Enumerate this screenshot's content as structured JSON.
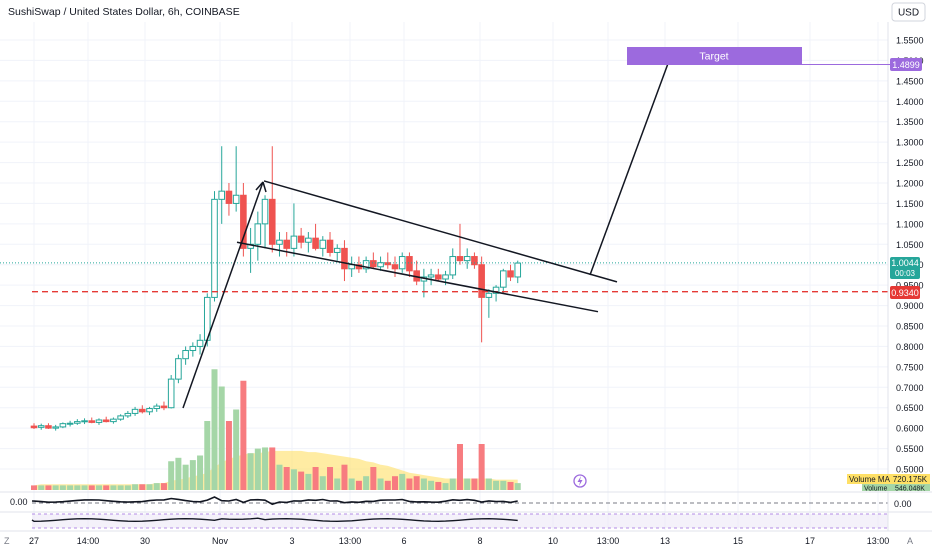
{
  "header": {
    "title": "SushiSwap / United States Dollar, 6h, COINBASE",
    "currency_button": "USD"
  },
  "colors": {
    "up": "#26a69a",
    "up_fill": "#ffffff",
    "down": "#ef5350",
    "vol_up": "#a5d6a7",
    "vol_down": "#f77c80",
    "vol_ma": "#ffe066",
    "accent": "#9c6ade",
    "dashed": "#e53935",
    "last_price": "#26a69a"
  },
  "annotations": {
    "target_label": "Target",
    "target_price": "1.4899",
    "last_price": "1.0044",
    "countdown": "00:03",
    "support_price": "0.9340",
    "volume_ma_label": "Volume MA",
    "volume_ma_value": "720.175K",
    "volume_label": "Volume",
    "volume_value": "546.048K",
    "osc_value_left": "0.00",
    "osc_value_right": "0.00"
  },
  "chart_data": {
    "type": "candlestick",
    "y_axis_ticks": [
      "1.5500",
      "1.5000",
      "1.4500",
      "1.4000",
      "1.3500",
      "1.3000",
      "1.2500",
      "1.2000",
      "1.1500",
      "1.1000",
      "1.0500",
      "1.0000",
      "0.9500",
      "0.9000",
      "0.8500",
      "0.8000",
      "0.7500",
      "0.7000",
      "0.6500",
      "0.6000",
      "0.5500",
      "0.5000"
    ],
    "x_axis_ticks": [
      "27",
      "14:00",
      "30",
      "Nov",
      "3",
      "13:00",
      "6",
      "8",
      "10",
      "13:00",
      "13",
      "15",
      "17",
      "13:00"
    ],
    "ylim": [
      0.49,
      1.57
    ],
    "candles": [
      {
        "o": 0.605,
        "h": 0.612,
        "l": 0.598,
        "c": 0.601,
        "v": 0.04
      },
      {
        "o": 0.602,
        "h": 0.611,
        "l": 0.596,
        "c": 0.606,
        "v": 0.04
      },
      {
        "o": 0.606,
        "h": 0.612,
        "l": 0.598,
        "c": 0.6,
        "v": 0.04
      },
      {
        "o": 0.6,
        "h": 0.608,
        "l": 0.594,
        "c": 0.603,
        "v": 0.04
      },
      {
        "o": 0.603,
        "h": 0.614,
        "l": 0.6,
        "c": 0.611,
        "v": 0.04
      },
      {
        "o": 0.611,
        "h": 0.618,
        "l": 0.604,
        "c": 0.612,
        "v": 0.04
      },
      {
        "o": 0.612,
        "h": 0.622,
        "l": 0.608,
        "c": 0.616,
        "v": 0.04
      },
      {
        "o": 0.616,
        "h": 0.624,
        "l": 0.61,
        "c": 0.618,
        "v": 0.04
      },
      {
        "o": 0.618,
        "h": 0.626,
        "l": 0.612,
        "c": 0.614,
        "v": 0.04
      },
      {
        "o": 0.614,
        "h": 0.624,
        "l": 0.608,
        "c": 0.62,
        "v": 0.04
      },
      {
        "o": 0.62,
        "h": 0.628,
        "l": 0.614,
        "c": 0.616,
        "v": 0.04
      },
      {
        "o": 0.616,
        "h": 0.626,
        "l": 0.611,
        "c": 0.622,
        "v": 0.04
      },
      {
        "o": 0.622,
        "h": 0.634,
        "l": 0.618,
        "c": 0.63,
        "v": 0.04
      },
      {
        "o": 0.63,
        "h": 0.642,
        "l": 0.625,
        "c": 0.636,
        "v": 0.04
      },
      {
        "o": 0.636,
        "h": 0.652,
        "l": 0.63,
        "c": 0.646,
        "v": 0.05
      },
      {
        "o": 0.646,
        "h": 0.656,
        "l": 0.636,
        "c": 0.64,
        "v": 0.05
      },
      {
        "o": 0.64,
        "h": 0.652,
        "l": 0.632,
        "c": 0.648,
        "v": 0.05
      },
      {
        "o": 0.648,
        "h": 0.66,
        "l": 0.64,
        "c": 0.654,
        "v": 0.06
      },
      {
        "o": 0.654,
        "h": 0.665,
        "l": 0.644,
        "c": 0.65,
        "v": 0.06
      },
      {
        "o": 0.65,
        "h": 0.73,
        "l": 0.648,
        "c": 0.72,
        "v": 0.25
      },
      {
        "o": 0.72,
        "h": 0.78,
        "l": 0.71,
        "c": 0.77,
        "v": 0.28
      },
      {
        "o": 0.77,
        "h": 0.8,
        "l": 0.755,
        "c": 0.79,
        "v": 0.22
      },
      {
        "o": 0.79,
        "h": 0.81,
        "l": 0.775,
        "c": 0.8,
        "v": 0.26
      },
      {
        "o": 0.8,
        "h": 0.83,
        "l": 0.78,
        "c": 0.815,
        "v": 0.3
      },
      {
        "o": 0.815,
        "h": 0.93,
        "l": 0.8,
        "c": 0.92,
        "v": 0.6
      },
      {
        "o": 0.92,
        "h": 1.18,
        "l": 0.91,
        "c": 1.16,
        "v": 1.05
      },
      {
        "o": 1.16,
        "h": 1.29,
        "l": 1.1,
        "c": 1.18,
        "v": 0.9
      },
      {
        "o": 1.18,
        "h": 1.2,
        "l": 1.12,
        "c": 1.15,
        "v": 0.6
      },
      {
        "o": 1.15,
        "h": 1.29,
        "l": 1.13,
        "c": 1.17,
        "v": 0.7
      },
      {
        "o": 1.17,
        "h": 1.2,
        "l": 1.02,
        "c": 1.04,
        "v": 0.95
      },
      {
        "o": 1.04,
        "h": 1.09,
        "l": 0.98,
        "c": 1.05,
        "v": 0.32
      },
      {
        "o": 1.05,
        "h": 1.13,
        "l": 1.01,
        "c": 1.1,
        "v": 0.36
      },
      {
        "o": 1.1,
        "h": 1.17,
        "l": 1.04,
        "c": 1.16,
        "v": 0.37
      },
      {
        "o": 1.16,
        "h": 1.29,
        "l": 1.03,
        "c": 1.05,
        "v": 0.37
      },
      {
        "o": 1.05,
        "h": 1.08,
        "l": 1.02,
        "c": 1.06,
        "v": 0.22
      },
      {
        "o": 1.06,
        "h": 1.08,
        "l": 1.02,
        "c": 1.04,
        "v": 0.2
      },
      {
        "o": 1.04,
        "h": 1.15,
        "l": 1.02,
        "c": 1.07,
        "v": 0.18
      },
      {
        "o": 1.07,
        "h": 1.09,
        "l": 1.04,
        "c": 1.055,
        "v": 0.16
      },
      {
        "o": 1.055,
        "h": 1.08,
        "l": 1.03,
        "c": 1.065,
        "v": 0.14
      },
      {
        "o": 1.065,
        "h": 1.1,
        "l": 1.035,
        "c": 1.04,
        "v": 0.2
      },
      {
        "o": 1.04,
        "h": 1.07,
        "l": 1.02,
        "c": 1.06,
        "v": 0.12
      },
      {
        "o": 1.06,
        "h": 1.08,
        "l": 1.02,
        "c": 1.03,
        "v": 0.2
      },
      {
        "o": 1.03,
        "h": 1.05,
        "l": 1.01,
        "c": 1.04,
        "v": 0.1
      },
      {
        "o": 1.04,
        "h": 1.06,
        "l": 0.96,
        "c": 0.99,
        "v": 0.22
      },
      {
        "o": 0.99,
        "h": 1.02,
        "l": 0.97,
        "c": 1.0,
        "v": 0.1
      },
      {
        "o": 1.0,
        "h": 1.02,
        "l": 0.98,
        "c": 0.99,
        "v": 0.08
      },
      {
        "o": 0.99,
        "h": 1.02,
        "l": 0.98,
        "c": 1.01,
        "v": 0.12
      },
      {
        "o": 1.01,
        "h": 1.03,
        "l": 0.99,
        "c": 0.995,
        "v": 0.2
      },
      {
        "o": 0.995,
        "h": 1.02,
        "l": 0.985,
        "c": 1.005,
        "v": 0.1
      },
      {
        "o": 1.005,
        "h": 1.03,
        "l": 0.99,
        "c": 1.0,
        "v": 0.08
      },
      {
        "o": 1.0,
        "h": 1.02,
        "l": 0.97,
        "c": 0.99,
        "v": 0.12
      },
      {
        "o": 0.99,
        "h": 1.03,
        "l": 0.98,
        "c": 1.02,
        "v": 0.14
      },
      {
        "o": 1.02,
        "h": 1.03,
        "l": 0.97,
        "c": 0.985,
        "v": 0.1
      },
      {
        "o": 0.985,
        "h": 1.01,
        "l": 0.95,
        "c": 0.96,
        "v": 0.12
      },
      {
        "o": 0.96,
        "h": 0.99,
        "l": 0.92,
        "c": 0.97,
        "v": 0.1
      },
      {
        "o": 0.97,
        "h": 0.99,
        "l": 0.95,
        "c": 0.975,
        "v": 0.08
      },
      {
        "o": 0.975,
        "h": 0.99,
        "l": 0.96,
        "c": 0.965,
        "v": 0.07
      },
      {
        "o": 0.965,
        "h": 0.985,
        "l": 0.95,
        "c": 0.975,
        "v": 0.06
      },
      {
        "o": 0.975,
        "h": 1.04,
        "l": 0.965,
        "c": 1.02,
        "v": 0.1
      },
      {
        "o": 1.02,
        "h": 1.1,
        "l": 1.0,
        "c": 1.01,
        "v": 0.4
      },
      {
        "o": 1.01,
        "h": 1.04,
        "l": 0.99,
        "c": 1.02,
        "v": 0.1
      },
      {
        "o": 1.02,
        "h": 1.03,
        "l": 0.99,
        "c": 1.0,
        "v": 0.1
      },
      {
        "o": 1.0,
        "h": 1.02,
        "l": 0.81,
        "c": 0.92,
        "v": 0.4
      },
      {
        "o": 0.92,
        "h": 0.94,
        "l": 0.87,
        "c": 0.93,
        "v": 0.1
      },
      {
        "o": 0.93,
        "h": 0.95,
        "l": 0.91,
        "c": 0.945,
        "v": 0.08
      },
      {
        "o": 0.945,
        "h": 0.99,
        "l": 0.93,
        "c": 0.985,
        "v": 0.08
      },
      {
        "o": 0.985,
        "h": 1.0,
        "l": 0.96,
        "c": 0.97,
        "v": 0.07
      },
      {
        "o": 0.97,
        "h": 1.01,
        "l": 0.955,
        "c": 1.004,
        "v": 0.06
      }
    ],
    "volume_ma": [
      0.04,
      0.05,
      0.05,
      0.05,
      0.05,
      0.05,
      0.05,
      0.05,
      0.05,
      0.05,
      0.05,
      0.05,
      0.05,
      0.05,
      0.05,
      0.05,
      0.05,
      0.06,
      0.06,
      0.08,
      0.09,
      0.1,
      0.12,
      0.13,
      0.15,
      0.2,
      0.24,
      0.27,
      0.29,
      0.31,
      0.32,
      0.32,
      0.33,
      0.34,
      0.34,
      0.34,
      0.34,
      0.34,
      0.33,
      0.33,
      0.32,
      0.31,
      0.3,
      0.29,
      0.28,
      0.27,
      0.25,
      0.24,
      0.22,
      0.21,
      0.19,
      0.17,
      0.15,
      0.14,
      0.13,
      0.12,
      0.11,
      0.1,
      0.1,
      0.1,
      0.1,
      0.1,
      0.1,
      0.1,
      0.09,
      0.09,
      0.09,
      0.09
    ]
  }
}
